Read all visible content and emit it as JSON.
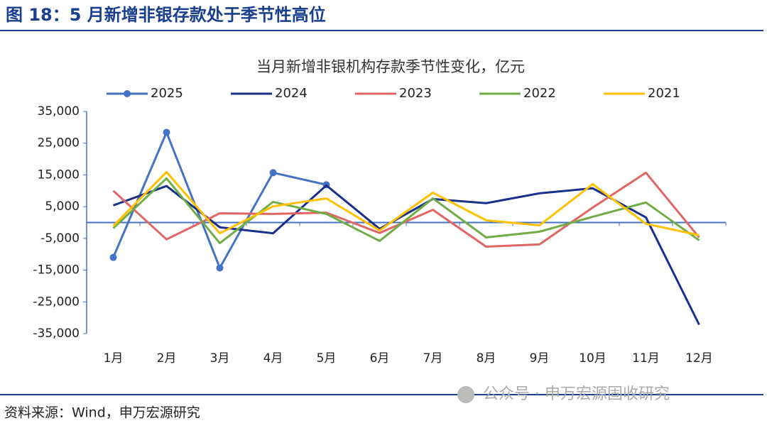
{
  "header": {
    "title": "图 18：5 月新增非银存款处于季节性高位"
  },
  "chart_data": {
    "type": "line",
    "title": "当月新增非银机构存款季节性变化，亿元",
    "categories": [
      "1月",
      "2月",
      "3月",
      "4月",
      "5月",
      "6月",
      "7月",
      "8月",
      "9月",
      "10月",
      "11月",
      "12月"
    ],
    "series": [
      {
        "name": "2025",
        "color": "#4472c4",
        "marker": "circle",
        "values": [
          -11000,
          28400,
          -14300,
          15700,
          11900,
          null,
          null,
          null,
          null,
          null,
          null,
          null
        ]
      },
      {
        "name": "2024",
        "color": "#1a2f8c",
        "values": [
          5400,
          11500,
          -1500,
          -3400,
          11700,
          -2000,
          7400,
          6100,
          9200,
          10800,
          1600,
          -32200
        ]
      },
      {
        "name": "2023",
        "color": "#e06666",
        "values": [
          10000,
          -5300,
          2900,
          2700,
          3100,
          -3300,
          4000,
          -7600,
          -6900,
          4700,
          15700,
          -4700
        ]
      },
      {
        "name": "2022",
        "color": "#70ad47",
        "values": [
          -1800,
          13900,
          -6500,
          6500,
          2700,
          -5800,
          7600,
          -4700,
          -2900,
          1800,
          6300,
          -5600
        ]
      },
      {
        "name": "2021",
        "color": "#ffc000",
        "values": [
          -1100,
          15900,
          -3400,
          5100,
          7600,
          -2500,
          9400,
          700,
          -900,
          12100,
          -400,
          -4000
        ]
      }
    ],
    "ylim": [
      -35000,
      35000
    ],
    "yticks": [
      {
        "value": 35000,
        "label": "35,000"
      },
      {
        "value": 25000,
        "label": "25,000"
      },
      {
        "value": 15000,
        "label": "15,000"
      },
      {
        "value": 5000,
        "label": "5,000"
      },
      {
        "value": -5000,
        "label": "-5,000"
      },
      {
        "value": -15000,
        "label": "-15,000"
      },
      {
        "value": -25000,
        "label": "-25,000"
      },
      {
        "value": -35000,
        "label": "-35,000"
      }
    ],
    "legend": "top"
  },
  "footer": {
    "source": "资料来源：Wind，申万宏源研究",
    "watermark": "公众号 · 申万宏源固收研究"
  }
}
